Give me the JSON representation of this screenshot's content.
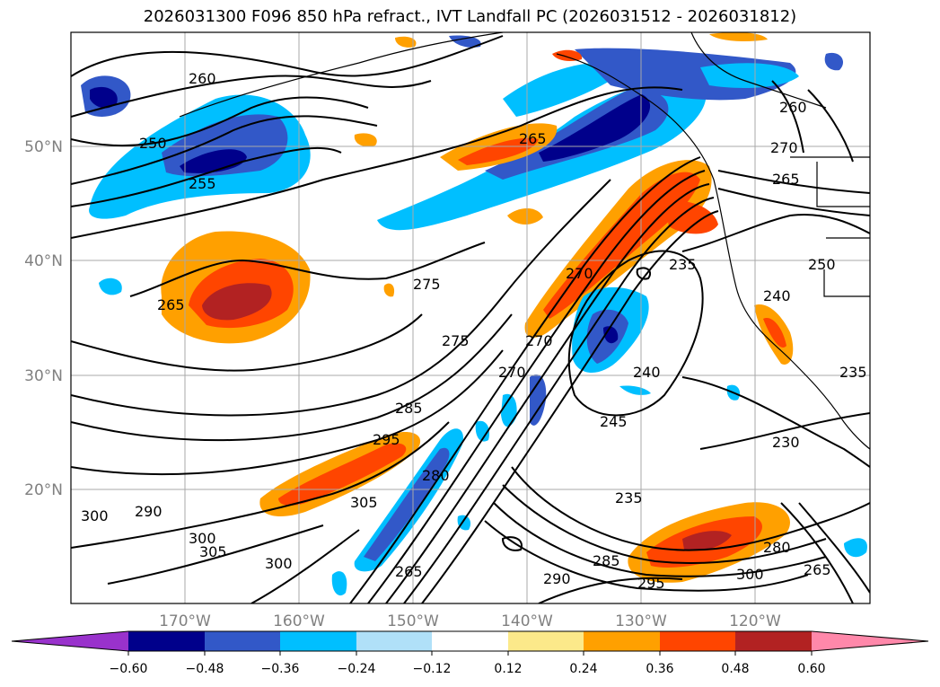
{
  "title": "2026031300 F096 850 hPa refract., IVT Landfall PC (2026031512 - 2026031812)",
  "lat_labels": [
    "50°N",
    "40°N",
    "30°N",
    "20°N"
  ],
  "lon_labels": [
    "170°W",
    "160°W",
    "150°W",
    "140°W",
    "130°W",
    "120°W"
  ],
  "contour_labels": [
    "260",
    "250",
    "255",
    "265",
    "265",
    "275",
    "275",
    "285",
    "295",
    "305",
    "300",
    "300",
    "305",
    "290",
    "300",
    "280",
    "265",
    "235",
    "240",
    "245",
    "230",
    "235",
    "285",
    "290",
    "295",
    "300",
    "280",
    "265",
    "260",
    "270",
    "265",
    "250",
    "240",
    "235",
    "270",
    "270",
    "270"
  ],
  "colorbar": {
    "ticks": [
      "−0.60",
      "−0.48",
      "−0.36",
      "−0.24",
      "−0.12",
      "0.12",
      "0.24",
      "0.36",
      "0.48",
      "0.60"
    ],
    "colors": [
      "#9932cc",
      "#00008b",
      "#3258c8",
      "#00bfff",
      "#b0e0f8",
      "#ffffff",
      "#fce98a",
      "#ffa000",
      "#ff4500",
      "#b22222",
      "#ff88aa"
    ]
  },
  "legend_colors": {
    "neg_strong": "#00008b",
    "neg_mid": "#3258c8",
    "neg_light": "#00bfff",
    "neg_pale": "#b0e0f8",
    "pos_pale": "#fce98a",
    "pos_light": "#ffa000",
    "pos_mid": "#ff4500",
    "pos_strong": "#b22222"
  }
}
